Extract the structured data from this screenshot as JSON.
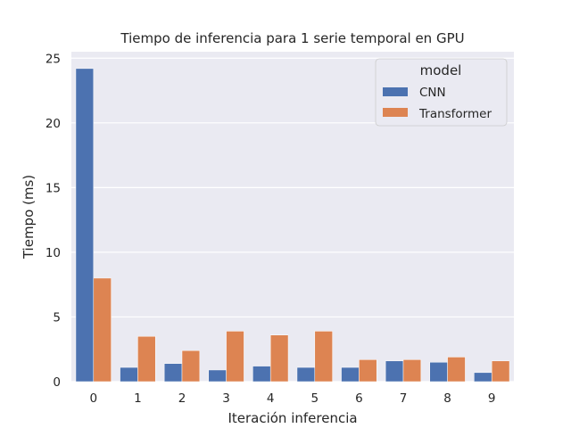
{
  "chart_data": {
    "type": "bar",
    "title": "Tiempo de inferencia para 1 serie temporal en GPU",
    "xlabel": "Iteración inferencia",
    "ylabel": "Tiempo (ms)",
    "categories": [
      "0",
      "1",
      "2",
      "3",
      "4",
      "5",
      "6",
      "7",
      "8",
      "9"
    ],
    "ylim": [
      0,
      25.5
    ],
    "yticks": [
      0,
      5,
      10,
      15,
      20,
      25
    ],
    "grid": true,
    "legend": {
      "title": "model",
      "placement": "top-right"
    },
    "series": [
      {
        "name": "CNN",
        "color": "#4c72b0",
        "values": [
          24.2,
          1.1,
          1.4,
          0.9,
          1.2,
          1.1,
          1.1,
          1.6,
          1.5,
          0.7
        ]
      },
      {
        "name": "Transformer",
        "color": "#dd8452",
        "values": [
          8.0,
          3.5,
          2.4,
          3.9,
          3.6,
          3.9,
          1.7,
          1.7,
          1.9,
          1.6
        ]
      }
    ]
  }
}
